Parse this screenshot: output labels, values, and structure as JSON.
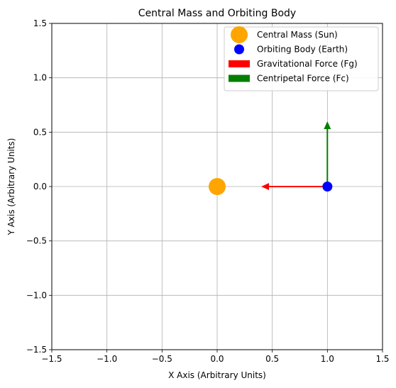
{
  "chart_data": {
    "type": "scatter",
    "title": "Central Mass and Orbiting Body",
    "xlabel": "X Axis (Arbitrary Units)",
    "ylabel": "Y Axis (Arbitrary Units)",
    "xlim": [
      -1.5,
      1.5
    ],
    "ylim": [
      -1.5,
      1.5
    ],
    "xticks": [
      -1.5,
      -1.0,
      -0.5,
      0.0,
      0.5,
      1.0,
      1.5
    ],
    "yticks": [
      -1.5,
      -1.0,
      -0.5,
      0.0,
      0.5,
      1.0,
      1.5
    ],
    "xtick_labels": [
      "−1.5",
      "−1.0",
      "−0.5",
      "0.0",
      "0.5",
      "1.0",
      "1.5"
    ],
    "ytick_labels": [
      "−1.5",
      "−1.0",
      "−0.5",
      "0.0",
      "0.5",
      "1.0",
      "1.5"
    ],
    "grid": true,
    "legend_position": "top-right",
    "points": [
      {
        "name": "Central Mass (Sun)",
        "x": 0.0,
        "y": 0.0,
        "color": "#ffa500",
        "size": "large"
      },
      {
        "name": "Orbiting Body (Earth)",
        "x": 1.0,
        "y": 0.0,
        "color": "#0000ff",
        "size": "small"
      }
    ],
    "arrows": [
      {
        "name": "Gravitational Force (Fg)",
        "x": 1.0,
        "y": 0.0,
        "dx": -0.6,
        "dy": 0.0,
        "color": "#ff0000"
      },
      {
        "name": "Centripetal Force (Fc)",
        "x": 1.0,
        "y": 0.0,
        "dx": 0.0,
        "dy": 0.6,
        "color": "#008000"
      }
    ]
  }
}
